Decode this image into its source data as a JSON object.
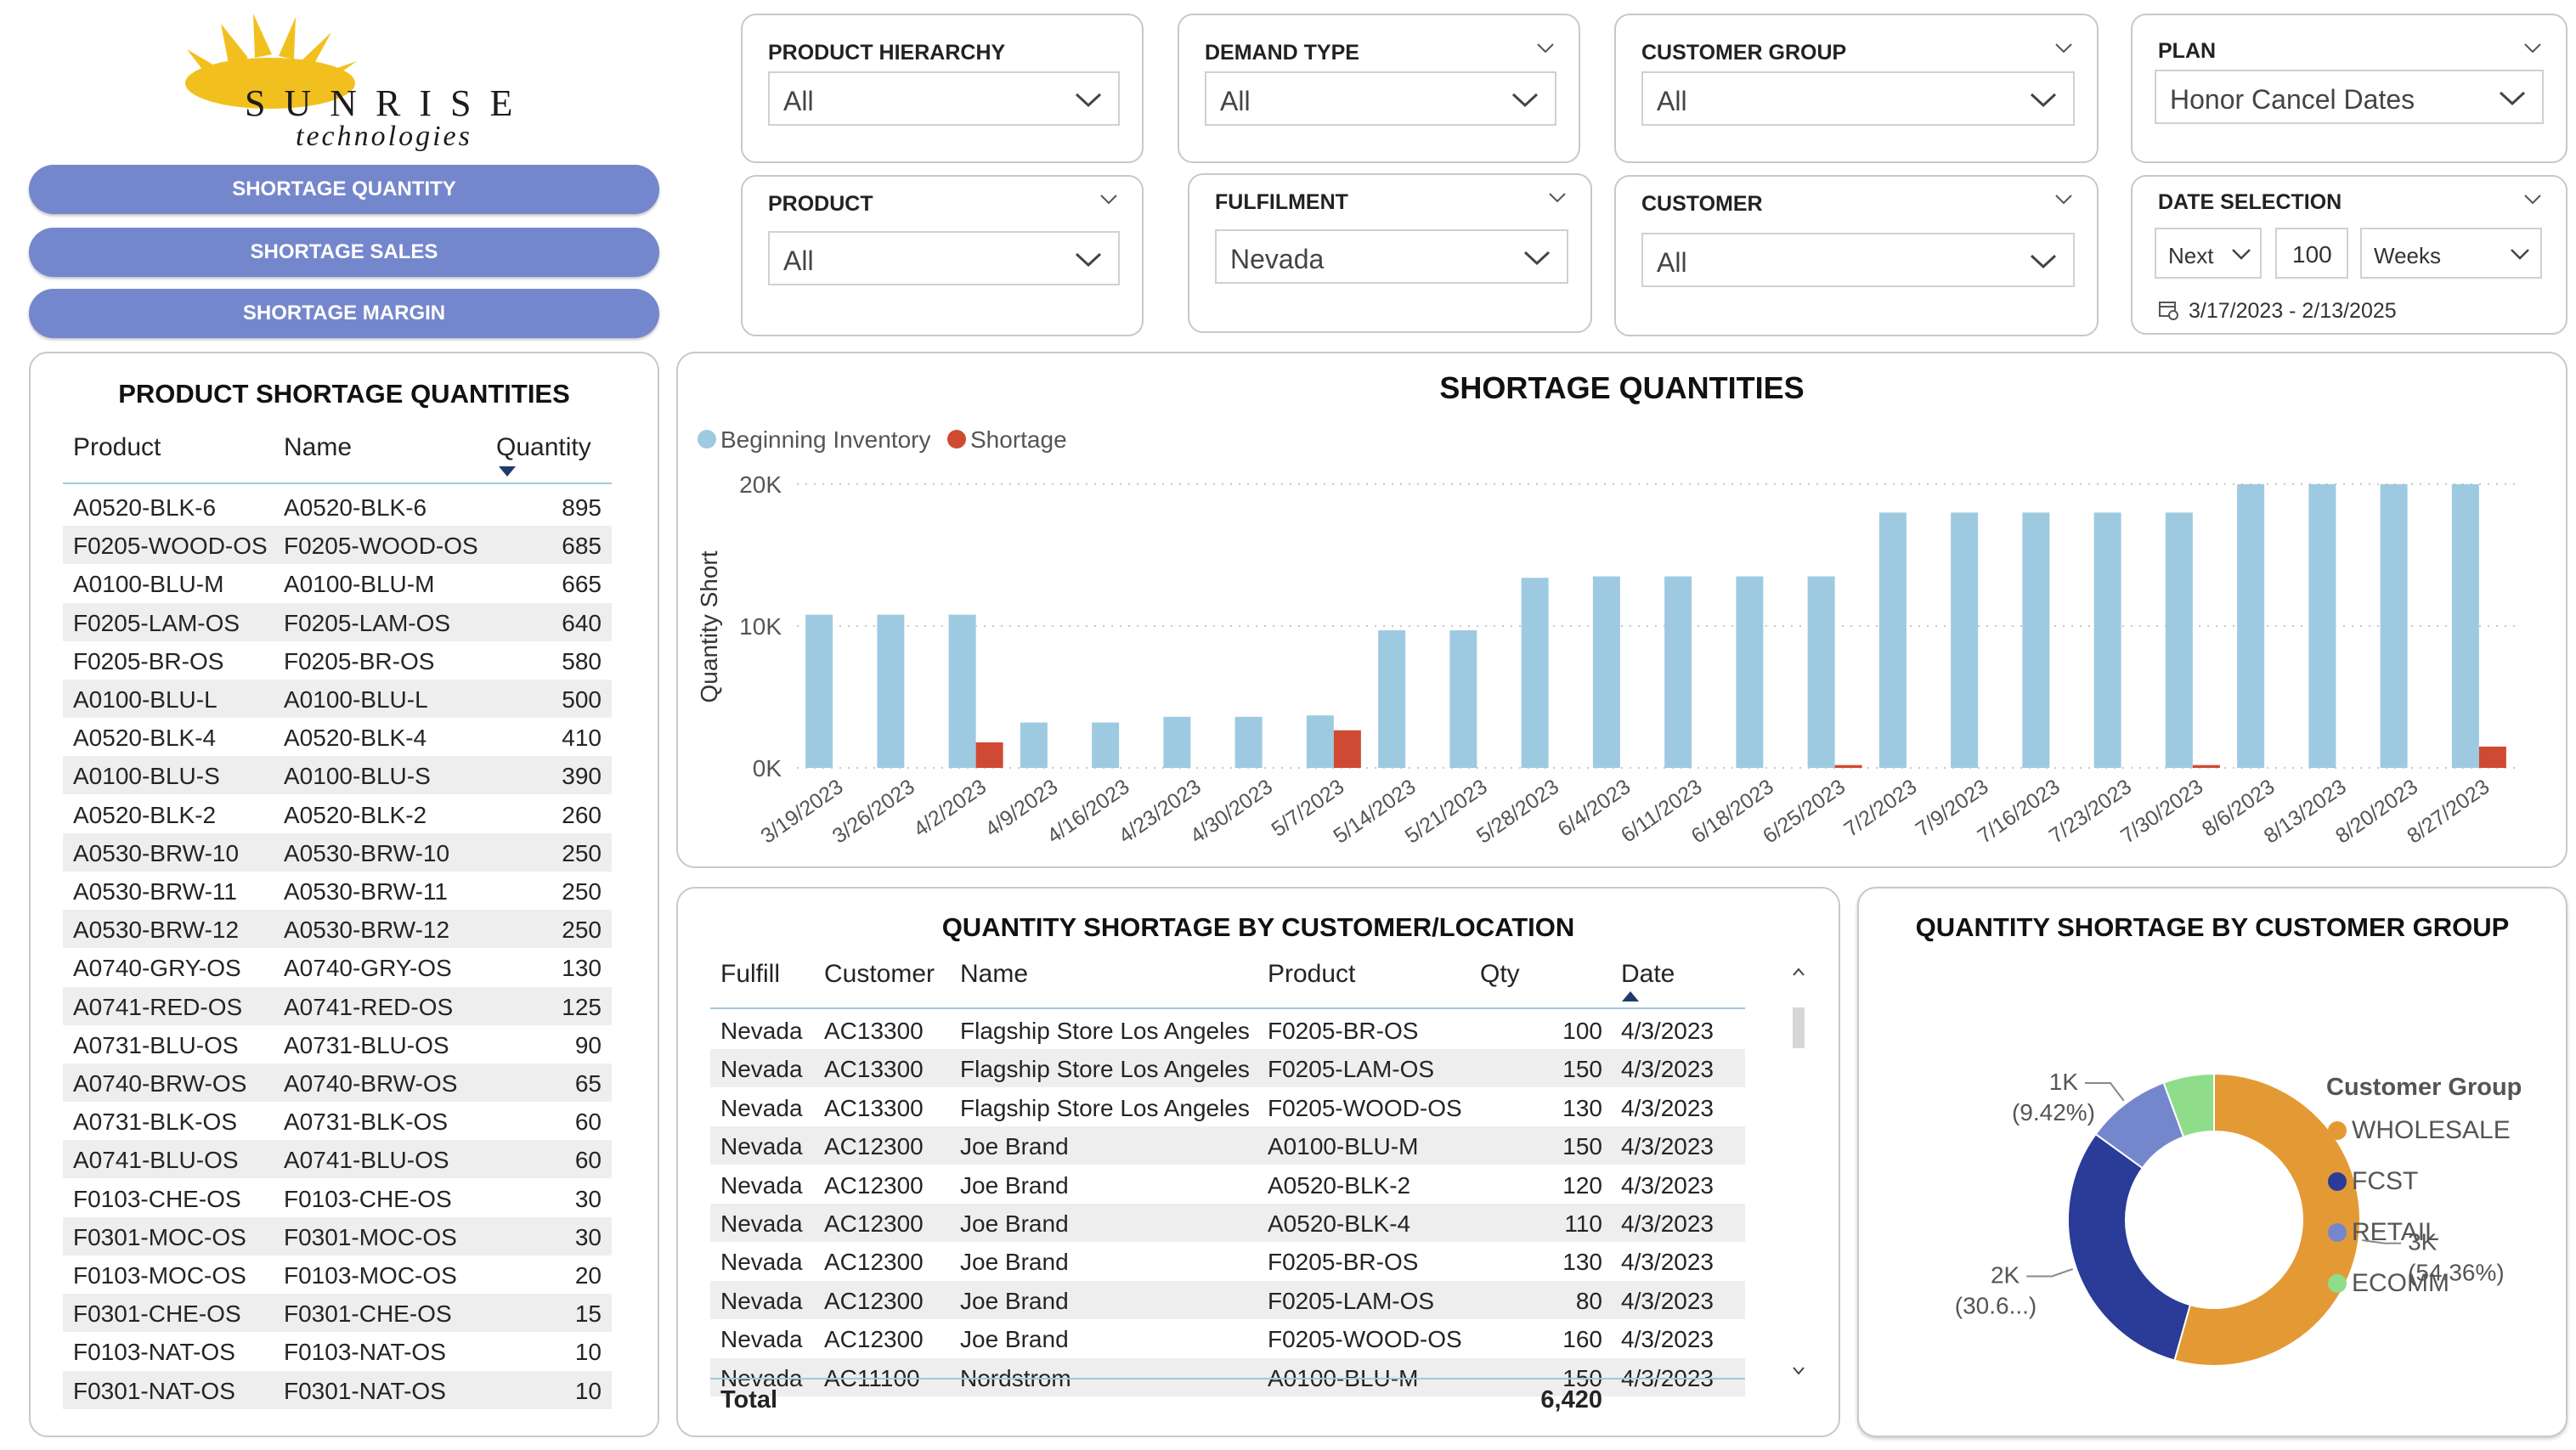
{
  "logo": {
    "word1": "SUNRISE",
    "word2": "technologies"
  },
  "nav": {
    "shortage_quantity": "SHORTAGE QUANTITY",
    "shortage_sales": "SHORTAGE SALES",
    "shortage_margin": "SHORTAGE MARGIN"
  },
  "filters": {
    "product_hierarchy": {
      "label": "PRODUCT HIERARCHY",
      "value": "All"
    },
    "demand_type": {
      "label": "DEMAND TYPE",
      "value": "All"
    },
    "customer_group": {
      "label": "CUSTOMER GROUP",
      "value": "All"
    },
    "plan": {
      "label": "PLAN",
      "value": "Honor Cancel Dates"
    },
    "product": {
      "label": "PRODUCT",
      "value": "All"
    },
    "fulfilment": {
      "label": "FULFILMENT",
      "value": "Nevada"
    },
    "customer": {
      "label": "CUSTOMER",
      "value": "All"
    },
    "date_selection": {
      "label": "DATE SELECTION",
      "relative": "Next",
      "count": "100",
      "unit": "Weeks",
      "range": "3/17/2023 - 2/13/2025"
    }
  },
  "product_table": {
    "title": "PRODUCT SHORTAGE QUANTITIES",
    "headers": [
      "Product",
      "Name",
      "Quantity"
    ],
    "rows": [
      [
        "A0520-BLK-6",
        "A0520-BLK-6",
        "895"
      ],
      [
        "F0205-WOOD-OS",
        "F0205-WOOD-OS",
        "685"
      ],
      [
        "A0100-BLU-M",
        "A0100-BLU-M",
        "665"
      ],
      [
        "F0205-LAM-OS",
        "F0205-LAM-OS",
        "640"
      ],
      [
        "F0205-BR-OS",
        "F0205-BR-OS",
        "580"
      ],
      [
        "A0100-BLU-L",
        "A0100-BLU-L",
        "500"
      ],
      [
        "A0520-BLK-4",
        "A0520-BLK-4",
        "410"
      ],
      [
        "A0100-BLU-S",
        "A0100-BLU-S",
        "390"
      ],
      [
        "A0520-BLK-2",
        "A0520-BLK-2",
        "260"
      ],
      [
        "A0530-BRW-10",
        "A0530-BRW-10",
        "250"
      ],
      [
        "A0530-BRW-11",
        "A0530-BRW-11",
        "250"
      ],
      [
        "A0530-BRW-12",
        "A0530-BRW-12",
        "250"
      ],
      [
        "A0740-GRY-OS",
        "A0740-GRY-OS",
        "130"
      ],
      [
        "A0741-RED-OS",
        "A0741-RED-OS",
        "125"
      ],
      [
        "A0731-BLU-OS",
        "A0731-BLU-OS",
        "90"
      ],
      [
        "A0740-BRW-OS",
        "A0740-BRW-OS",
        "65"
      ],
      [
        "A0731-BLK-OS",
        "A0731-BLK-OS",
        "60"
      ],
      [
        "A0741-BLU-OS",
        "A0741-BLU-OS",
        "60"
      ],
      [
        "F0103-CHE-OS",
        "F0103-CHE-OS",
        "30"
      ],
      [
        "F0301-MOC-OS",
        "F0301-MOC-OS",
        "30"
      ],
      [
        "F0103-MOC-OS",
        "F0103-MOC-OS",
        "20"
      ],
      [
        "F0301-CHE-OS",
        "F0301-CHE-OS",
        "15"
      ],
      [
        "F0103-NAT-OS",
        "F0103-NAT-OS",
        "10"
      ],
      [
        "F0301-NAT-OS",
        "F0301-NAT-OS",
        "10"
      ]
    ]
  },
  "customer_table": {
    "title": "QUANTITY SHORTAGE BY CUSTOMER/LOCATION",
    "headers": [
      "Fulfill",
      "Customer",
      "Name",
      "Product",
      "Qty",
      "Date"
    ],
    "rows": [
      [
        "Nevada",
        "AC13300",
        "Flagship Store Los Angeles",
        "F0205-BR-OS",
        "100",
        "4/3/2023"
      ],
      [
        "Nevada",
        "AC13300",
        "Flagship Store Los Angeles",
        "F0205-LAM-OS",
        "150",
        "4/3/2023"
      ],
      [
        "Nevada",
        "AC13300",
        "Flagship Store Los Angeles",
        "F0205-WOOD-OS",
        "130",
        "4/3/2023"
      ],
      [
        "Nevada",
        "AC12300",
        "Joe Brand",
        "A0100-BLU-M",
        "150",
        "4/3/2023"
      ],
      [
        "Nevada",
        "AC12300",
        "Joe Brand",
        "A0520-BLK-2",
        "120",
        "4/3/2023"
      ],
      [
        "Nevada",
        "AC12300",
        "Joe Brand",
        "A0520-BLK-4",
        "110",
        "4/3/2023"
      ],
      [
        "Nevada",
        "AC12300",
        "Joe Brand",
        "F0205-BR-OS",
        "130",
        "4/3/2023"
      ],
      [
        "Nevada",
        "AC12300",
        "Joe Brand",
        "F0205-LAM-OS",
        "80",
        "4/3/2023"
      ],
      [
        "Nevada",
        "AC12300",
        "Joe Brand",
        "F0205-WOOD-OS",
        "160",
        "4/3/2023"
      ],
      [
        "Nevada",
        "AC11100",
        "Nordstrom",
        "A0100-BLU-M",
        "150",
        "4/3/2023"
      ]
    ],
    "total_label": "Total",
    "total_value": "6,420"
  },
  "chart_data": [
    {
      "type": "bar",
      "title": "SHORTAGE QUANTITIES",
      "ylabel": "Quantity Short",
      "xlabel": "",
      "ylim": [
        0,
        20000
      ],
      "yticks": [
        "0K",
        "10K",
        "20K"
      ],
      "legend": "top-left",
      "grid": true,
      "categories": [
        "3/19/2023",
        "3/26/2023",
        "4/2/2023",
        "4/9/2023",
        "4/16/2023",
        "4/23/2023",
        "4/30/2023",
        "5/7/2023",
        "5/14/2023",
        "5/21/2023",
        "5/28/2023",
        "6/4/2023",
        "6/11/2023",
        "6/18/2023",
        "6/25/2023",
        "7/2/2023",
        "7/9/2023",
        "7/16/2023",
        "7/23/2023",
        "7/30/2023",
        "8/6/2023",
        "8/13/2023",
        "8/20/2023",
        "8/27/2023"
      ],
      "series": [
        {
          "name": "Beginning Inventory",
          "color": "#9ecae1",
          "values": [
            10800,
            10800,
            10800,
            3200,
            3200,
            3600,
            3600,
            3700,
            9700,
            9700,
            13400,
            13500,
            13500,
            13500,
            13500,
            18000,
            18000,
            18000,
            18000,
            18000,
            20000,
            20000,
            20000,
            20000
          ]
        },
        {
          "name": "Shortage",
          "color": "#d04a33",
          "values": [
            0,
            0,
            1800,
            0,
            0,
            0,
            0,
            2650,
            0,
            0,
            0,
            0,
            0,
            0,
            200,
            0,
            0,
            0,
            0,
            200,
            0,
            0,
            0,
            1500
          ]
        }
      ]
    },
    {
      "type": "pie",
      "title": "QUANTITY SHORTAGE BY CUSTOMER GROUP",
      "legend_title": "Customer Group",
      "legend": "right",
      "categories": [
        "WHOLESALE",
        "FCST",
        "RETAIL",
        "ECOMM"
      ],
      "values": [
        3490,
        1965,
        605,
        360
      ],
      "colors": [
        "#e39a35",
        "#2a3b98",
        "#7587cc",
        "#8fdd8a"
      ],
      "labels": [
        {
          "value": "3K",
          "pct": "(54.36%)"
        },
        {
          "value": "2K",
          "pct": "(30.6...)"
        },
        {
          "value": "1K",
          "pct": "(9.42%)"
        }
      ]
    }
  ]
}
